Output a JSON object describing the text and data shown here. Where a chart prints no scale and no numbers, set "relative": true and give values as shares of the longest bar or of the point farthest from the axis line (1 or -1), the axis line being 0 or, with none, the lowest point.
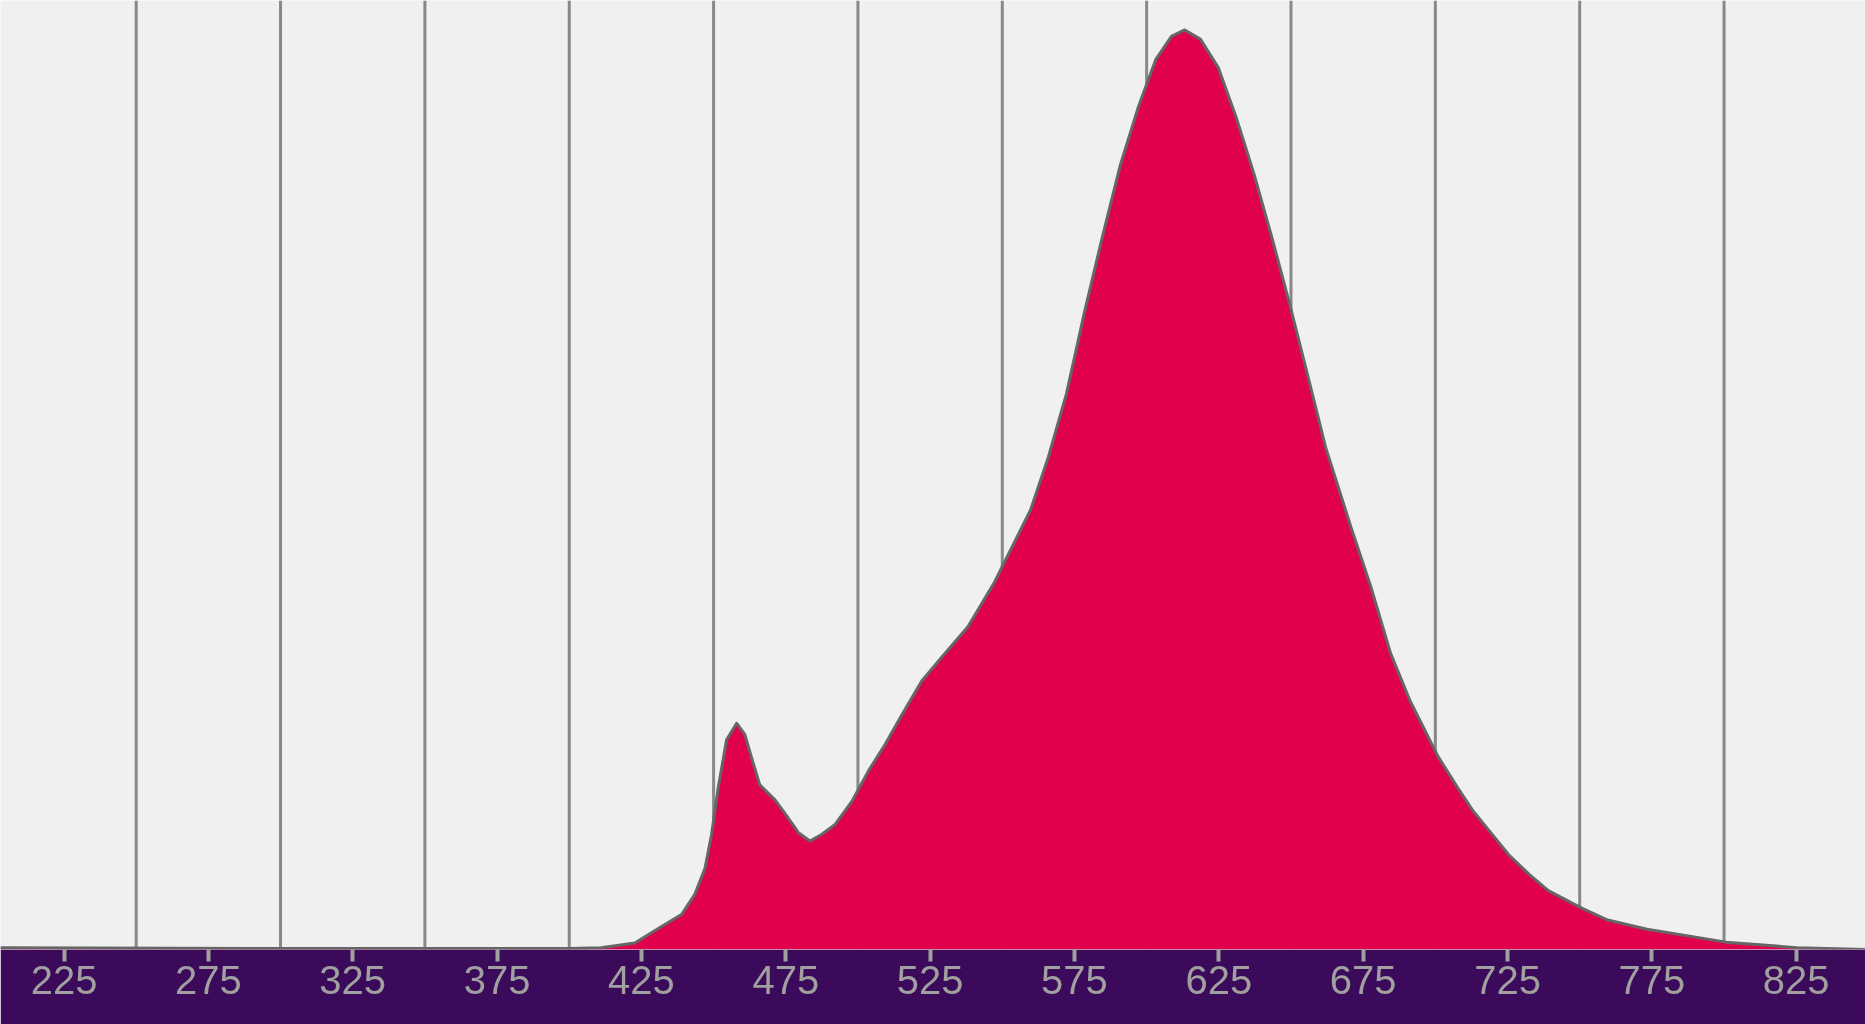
{
  "chart_data": {
    "type": "area",
    "relative": true,
    "color": "#e0004d",
    "x": [
      203,
      300,
      400,
      411,
      422.7,
      432,
      438.9,
      443.5,
      447,
      449.3,
      451.6,
      454.5,
      458,
      460.8,
      463.2,
      466,
      471.2,
      474.7,
      479.4,
      483.4,
      487.4,
      492.1,
      497.9,
      503.6,
      509.4,
      515.2,
      522.1,
      528.8,
      538.1,
      547.4,
      551.2,
      559.8,
      566,
      572.2,
      578.4,
      584.6,
      590.8,
      597,
      603.2,
      608.6,
      613.2,
      618.6,
      624.8,
      631,
      637.3,
      643.4,
      649.6,
      655.8,
      662,
      670.8,
      677.6,
      684.5,
      691.3,
      700.9,
      707.7,
      713.2,
      718.7,
      725.4,
      732.4,
      739.1,
      750.7,
      759.7,
      773.3,
      800.7,
      825.3,
      849
    ],
    "values": [
      0.002,
      0.001,
      0.001,
      0.002,
      0.007,
      0.025,
      0.038,
      0.06,
      0.088,
      0.125,
      0.176,
      0.228,
      0.246,
      0.234,
      0.208,
      0.179,
      0.163,
      0.148,
      0.127,
      0.118,
      0.125,
      0.136,
      0.161,
      0.194,
      0.223,
      0.255,
      0.292,
      0.317,
      0.351,
      0.4,
      0.424,
      0.478,
      0.536,
      0.604,
      0.692,
      0.774,
      0.852,
      0.915,
      0.968,
      0.993,
      1,
      0.99,
      0.959,
      0.905,
      0.842,
      0.774,
      0.701,
      0.624,
      0.546,
      0.459,
      0.395,
      0.322,
      0.27,
      0.21,
      0.176,
      0.15,
      0.129,
      0.103,
      0.082,
      0.064,
      0.045,
      0.032,
      0.022,
      0.008,
      0.002,
      0
    ],
    "xlim": [
      203,
      849
    ],
    "xticks": [
      225,
      275,
      325,
      375,
      425,
      475,
      525,
      575,
      625,
      675,
      725,
      775,
      825
    ],
    "ref_lines": [
      {
        "axis": "x",
        "value": 250,
        "color": "#888888"
      },
      {
        "axis": "x",
        "value": 300,
        "color": "#888888"
      },
      {
        "axis": "x",
        "value": 350,
        "color": "#888888"
      },
      {
        "axis": "x",
        "value": 400,
        "color": "#888888"
      },
      {
        "axis": "x",
        "value": 450,
        "color": "#888888"
      },
      {
        "axis": "x",
        "value": 500,
        "color": "#888888"
      },
      {
        "axis": "x",
        "value": 550,
        "color": "#888888"
      },
      {
        "axis": "x",
        "value": 600,
        "color": "#888888"
      },
      {
        "axis": "x",
        "value": 650,
        "color": "#888888"
      },
      {
        "axis": "x",
        "value": 700,
        "color": "#888888"
      },
      {
        "axis": "x",
        "value": 750,
        "color": "#888888"
      },
      {
        "axis": "x",
        "value": 800,
        "color": "#888888"
      }
    ]
  }
}
